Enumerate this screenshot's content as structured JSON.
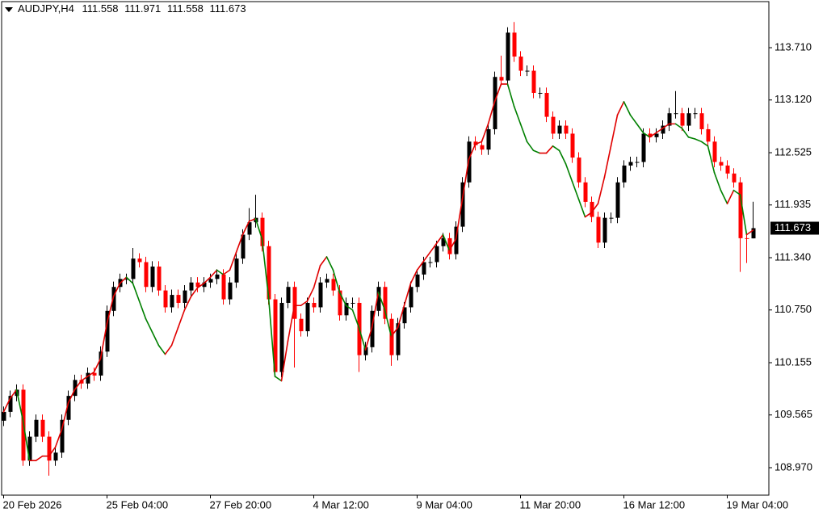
{
  "chart_data": {
    "type": "candlestick",
    "header": {
      "symbol": "AUDJPY,H4",
      "ohlc": [
        111.558,
        111.971,
        111.558,
        111.673
      ]
    },
    "x": [
      "20 Feb 2026",
      null,
      null,
      null,
      null,
      null,
      null,
      null,
      null,
      null,
      null,
      null,
      null,
      null,
      null,
      null,
      "25 Feb 04:00",
      null,
      null,
      null,
      null,
      null,
      null,
      null,
      null,
      null,
      null,
      null,
      null,
      null,
      null,
      null,
      "27 Feb 20:00",
      null,
      null,
      null,
      null,
      null,
      null,
      null,
      null,
      null,
      null,
      null,
      null,
      null,
      null,
      null,
      "4 Mar 12:00",
      null,
      null,
      null,
      null,
      null,
      null,
      null,
      null,
      null,
      null,
      null,
      null,
      null,
      null,
      null,
      "9 Mar 04:00",
      null,
      null,
      null,
      null,
      null,
      null,
      null,
      null,
      null,
      null,
      null,
      null,
      null,
      null,
      null,
      "11 Mar 20:00",
      null,
      null,
      null,
      null,
      null,
      null,
      null,
      null,
      null,
      null,
      null,
      null,
      null,
      null,
      null,
      "16 Mar 12:00",
      null,
      null,
      null,
      null,
      null,
      null,
      null,
      null,
      null,
      null,
      null,
      null,
      null,
      null,
      null,
      "19 Mar 04:00",
      null,
      null,
      null,
      null
    ],
    "open": [
      109.5,
      109.6,
      109.78,
      109.85,
      109.05,
      109.32,
      109.51,
      109.32,
      109.05,
      109.14,
      109.51,
      109.78,
      109.96,
      109.92,
      110.04,
      110.01,
      110.28,
      110.74,
      111.01,
      111.1,
      111.1,
      111.33,
      111.29,
      111.01,
      111.24,
      110.97,
      110.78,
      110.92,
      110.83,
      110.97,
      111.06,
      111.01,
      111.06,
      111.1,
      111.15,
      110.87,
      111.06,
      111.33,
      111.6,
      111.74,
      111.79,
      111.47,
      110.87,
      110.05,
      110.83,
      111.01,
      110.65,
      110.51,
      110.83,
      110.78,
      111.06,
      111.1,
      110.97,
      110.69,
      110.83,
      110.83,
      110.24,
      110.33,
      110.74,
      111.01,
      110.65,
      110.24,
      110.6,
      110.78,
      111.01,
      111.15,
      111.29,
      111.29,
      111.47,
      111.56,
      111.38,
      111.69,
      112.19,
      112.65,
      112.61,
      112.56,
      112.79,
      113.38,
      113.34,
      113.88,
      113.61,
      113.45,
      113.45,
      113.2,
      113.2,
      112.93,
      112.74,
      112.83,
      112.74,
      112.47,
      112.19,
      111.97,
      111.8,
      111.51,
      111.79,
      111.79,
      112.19,
      112.38,
      112.42,
      112.42,
      112.74,
      112.7,
      112.74,
      112.83,
      112.97,
      112.97,
      112.83,
      112.97,
      112.97,
      112.79,
      112.65,
      112.42,
      112.38,
      112.29,
      112.19,
      111.56,
      111.558
    ],
    "high": [
      109.66,
      109.84,
      109.91,
      109.91,
      109.38,
      109.57,
      109.57,
      109.38,
      109.2,
      109.57,
      109.84,
      110.02,
      110.02,
      110.1,
      110.1,
      110.34,
      110.8,
      111.07,
      111.16,
      111.16,
      111.45,
      111.39,
      111.35,
      111.3,
      111.3,
      111.03,
      110.98,
      110.98,
      111.03,
      111.12,
      111.12,
      111.12,
      111.16,
      111.21,
      111.21,
      111.12,
      111.39,
      111.66,
      111.9,
      112.05,
      111.85,
      111.53,
      110.93,
      110.89,
      111.07,
      111.07,
      110.71,
      110.89,
      110.89,
      111.12,
      111.16,
      111.16,
      111.03,
      110.89,
      110.89,
      110.89,
      110.39,
      110.8,
      111.07,
      111.07,
      110.71,
      110.66,
      110.84,
      111.07,
      111.21,
      111.35,
      111.35,
      111.53,
      111.62,
      111.62,
      111.75,
      112.25,
      112.71,
      112.71,
      112.67,
      112.85,
      113.44,
      113.62,
      113.94,
      114.0,
      113.67,
      113.51,
      113.51,
      113.26,
      113.26,
      112.99,
      112.89,
      112.89,
      112.8,
      112.53,
      112.25,
      112.03,
      111.86,
      111.85,
      111.85,
      112.25,
      112.44,
      112.48,
      112.48,
      112.8,
      112.8,
      112.8,
      112.89,
      113.03,
      113.22,
      113.03,
      113.03,
      113.03,
      113.03,
      112.85,
      112.71,
      112.48,
      112.44,
      112.35,
      112.25,
      111.62,
      111.971
    ],
    "low": [
      109.44,
      109.54,
      109.72,
      108.99,
      108.99,
      109.26,
      109.26,
      108.88,
      108.99,
      109.08,
      109.45,
      109.72,
      109.86,
      109.86,
      109.95,
      109.95,
      110.22,
      110.68,
      110.95,
      111.04,
      111.04,
      111.23,
      110.95,
      110.95,
      110.91,
      110.72,
      110.72,
      110.77,
      110.77,
      110.91,
      110.95,
      110.95,
      111.0,
      111.04,
      110.81,
      110.81,
      111.0,
      111.27,
      111.54,
      111.68,
      111.41,
      110.81,
      109.99,
      109.99,
      110.77,
      110.1,
      110.45,
      110.45,
      110.72,
      110.72,
      111.0,
      110.91,
      110.63,
      110.63,
      110.77,
      110.05,
      110.18,
      110.27,
      110.68,
      110.59,
      110.12,
      110.18,
      110.54,
      110.72,
      110.95,
      111.09,
      111.23,
      111.23,
      111.41,
      111.32,
      111.32,
      111.63,
      112.13,
      112.55,
      112.5,
      112.5,
      112.73,
      113.28,
      113.28,
      113.55,
      113.39,
      113.39,
      113.14,
      113.14,
      112.87,
      112.68,
      112.68,
      112.68,
      112.41,
      112.13,
      111.91,
      111.74,
      111.45,
      111.45,
      111.73,
      111.73,
      112.13,
      112.32,
      112.36,
      112.36,
      112.64,
      112.64,
      112.68,
      112.77,
      112.91,
      112.77,
      112.77,
      112.91,
      112.73,
      112.59,
      112.36,
      112.32,
      112.23,
      112.13,
      111.18,
      111.28,
      111.558
    ],
    "close": [
      109.6,
      109.78,
      109.85,
      109.05,
      109.32,
      109.51,
      109.32,
      109.05,
      109.14,
      109.51,
      109.78,
      109.96,
      109.92,
      110.04,
      110.01,
      110.28,
      110.74,
      111.01,
      111.1,
      111.1,
      111.33,
      111.29,
      111.01,
      111.24,
      110.97,
      110.78,
      110.92,
      110.83,
      110.97,
      111.06,
      111.01,
      111.06,
      111.1,
      111.15,
      110.87,
      111.06,
      111.33,
      111.6,
      111.74,
      111.79,
      111.47,
      110.87,
      110.05,
      110.83,
      111.01,
      110.65,
      110.51,
      110.83,
      110.78,
      111.06,
      111.1,
      110.97,
      110.69,
      110.83,
      110.83,
      110.24,
      110.33,
      110.74,
      111.01,
      110.65,
      110.24,
      110.6,
      110.78,
      111.01,
      111.15,
      111.29,
      111.29,
      111.47,
      111.56,
      111.38,
      111.69,
      112.19,
      112.65,
      112.61,
      112.56,
      112.79,
      113.38,
      113.34,
      113.88,
      113.61,
      113.45,
      113.45,
      113.2,
      113.2,
      112.93,
      112.74,
      112.83,
      112.74,
      112.47,
      112.19,
      111.97,
      111.8,
      111.51,
      111.79,
      111.79,
      112.19,
      112.38,
      112.42,
      112.42,
      112.74,
      112.7,
      112.74,
      112.83,
      112.97,
      112.97,
      112.83,
      112.97,
      112.97,
      112.79,
      112.65,
      112.42,
      112.38,
      112.29,
      112.19,
      111.56,
      111.558,
      111.673
    ],
    "up_color": "#000000",
    "down_color": "#ff0000",
    "line": {
      "values": [
        109.6,
        109.75,
        109.85,
        109.5,
        109.05,
        109.05,
        109.1,
        109.1,
        109.2,
        109.4,
        109.7,
        109.85,
        109.95,
        110.0,
        110.05,
        110.2,
        110.6,
        110.9,
        111.05,
        111.12,
        111.05,
        110.85,
        110.65,
        110.5,
        110.35,
        110.25,
        110.35,
        110.55,
        110.75,
        110.9,
        111.0,
        111.05,
        111.12,
        111.2,
        111.15,
        111.2,
        111.4,
        111.6,
        111.75,
        111.78,
        111.55,
        110.9,
        110.0,
        109.95,
        110.4,
        110.8,
        110.8,
        110.85,
        111.0,
        111.25,
        111.35,
        111.2,
        110.95,
        110.8,
        110.75,
        110.55,
        110.3,
        110.55,
        110.95,
        110.75,
        110.45,
        110.55,
        110.8,
        111.05,
        111.2,
        111.3,
        111.4,
        111.5,
        111.6,
        111.42,
        111.55,
        112.0,
        112.45,
        112.62,
        112.65,
        112.85,
        113.1,
        113.3,
        113.3,
        113.05,
        112.85,
        112.65,
        112.55,
        112.52,
        112.52,
        112.6,
        112.55,
        112.4,
        112.2,
        112.0,
        111.8,
        111.85,
        111.95,
        112.25,
        112.6,
        112.95,
        113.1,
        112.95,
        112.85,
        112.75,
        112.7,
        112.75,
        112.8,
        112.85,
        112.85,
        112.8,
        112.7,
        112.68,
        112.65,
        112.6,
        112.3,
        112.1,
        111.95,
        112.1,
        112.05,
        111.6,
        111.65
      ],
      "rise_color": "#e00000",
      "fall_color": "#008000"
    },
    "ylim": [
      108.66,
      114.23
    ],
    "yticks": [
      {
        "value": 113.71,
        "label": "113.710"
      },
      {
        "value": 113.12,
        "label": "113.120"
      },
      112.525,
      111.935,
      {
        "value": 111.34,
        "label": "111.340"
      },
      {
        "value": 110.75,
        "label": "110.750"
      },
      110.155,
      109.565,
      {
        "value": 108.97,
        "label": "108.970"
      }
    ]
  }
}
